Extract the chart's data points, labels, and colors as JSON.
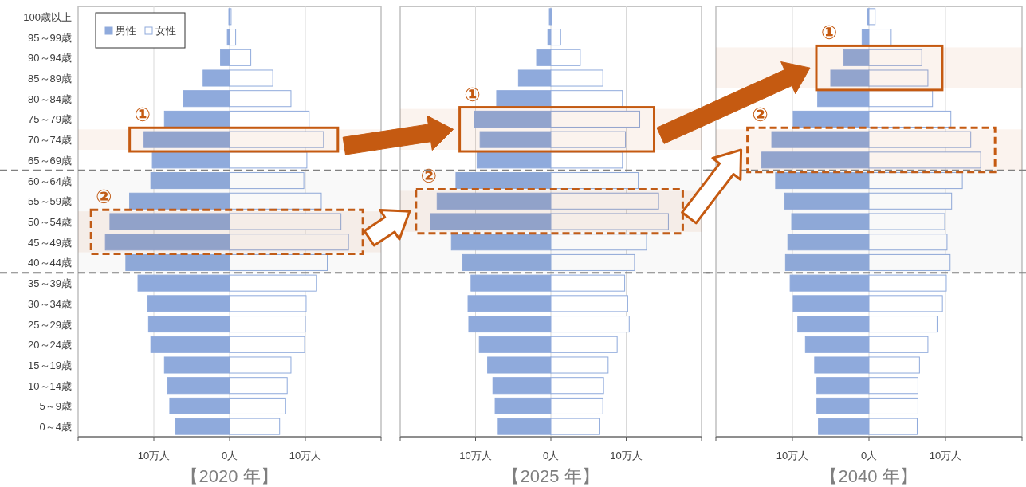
{
  "chart_data": [
    {
      "type": "bar",
      "orientation": "horizontal",
      "stacked": true,
      "title": "【2020 年】",
      "categories": [
        "100歳以上",
        "95～99歳",
        "90～94歳",
        "85～89歳",
        "80～84歳",
        "75～79歳",
        "70～74歳",
        "65～69歳",
        "60～64歳",
        "55～59歳",
        "50～54歳",
        "45～49歳",
        "40～44歳",
        "35～39歳",
        "30～34歳",
        "25～29歳",
        "20～24歳",
        "15～19歳",
        "10～14歳",
        "5～9歳",
        "0～4歳"
      ],
      "series": [
        {
          "name": "男性",
          "color": "#8faadc",
          "values": [
            -0.1,
            -0.3,
            -1.2,
            -3.5,
            -6.1,
            -8.6,
            -11.3,
            -10.2,
            -10.4,
            -13.2,
            -15.8,
            -16.4,
            -13.7,
            -12.1,
            -10.8,
            -10.7,
            -10.4,
            -8.6,
            -8.2,
            -7.9,
            -7.1
          ]
        },
        {
          "name": "女性",
          "color": "#ffffff",
          "values": [
            0.2,
            0.8,
            2.8,
            5.7,
            8.1,
            10.5,
            12.4,
            10.2,
            9.8,
            12.1,
            14.7,
            15.7,
            12.9,
            11.5,
            10.1,
            10.0,
            9.9,
            8.1,
            7.6,
            7.4,
            6.6
          ]
        }
      ],
      "xlim": [
        -20,
        20
      ],
      "xticks": [
        {
          "value": -20,
          "label": null
        },
        {
          "value": -10,
          "label": "10万人"
        },
        {
          "value": 0,
          "label": "0人"
        },
        {
          "value": 10,
          "label": "10万人"
        },
        {
          "value": 20,
          "label": null
        }
      ],
      "grid": "x",
      "legend": "top left",
      "bands": [
        {
          "axis": "y",
          "from": "70～74歳",
          "to": "70～74歳",
          "label": "①",
          "color": "#c55a11"
        },
        {
          "axis": "y",
          "from": "50～54歳",
          "to": "45～49歳",
          "label": "②",
          "color": "#c55a11"
        },
        {
          "axis": "y",
          "from": "60～64歳",
          "to": "40～44歳",
          "color": "#808080"
        }
      ]
    },
    {
      "type": "bar",
      "orientation": "horizontal",
      "stacked": true,
      "title": "【2025 年】",
      "tick_labels": "x",
      "categories": [
        "100歳以上",
        "95～99歳",
        "90～94歳",
        "85～89歳",
        "80～84歳",
        "75～79歳",
        "70～74歳",
        "65～69歳",
        "60～64歳",
        "55～59歳",
        "50～54歳",
        "45～49歳",
        "40～44歳",
        "35～39歳",
        "30～34歳",
        "25～29歳",
        "20～24歳",
        "15～19歳",
        "10～14歳",
        "5～9歳",
        "0～4歳"
      ],
      "series": [
        {
          "color": "#8faadc",
          "values": [
            -0.2,
            -0.4,
            -1.9,
            -4.3,
            -7.2,
            -10.2,
            -9.4,
            -9.8,
            -12.6,
            -15.1,
            -16.0,
            -13.2,
            -11.7,
            -10.6,
            -11.0,
            -10.9,
            -9.5,
            -8.4,
            -7.7,
            -7.4,
            -7.0
          ]
        },
        {
          "color": "#ffffff",
          "values": [
            0.1,
            1.3,
            3.9,
            6.9,
            9.5,
            11.8,
            9.9,
            9.5,
            11.6,
            14.3,
            15.6,
            12.7,
            11.1,
            9.8,
            10.2,
            10.4,
            8.8,
            7.6,
            7.0,
            6.9,
            6.5
          ]
        }
      ],
      "xlim": [
        -20,
        20
      ],
      "xticks": [
        {
          "value": -20,
          "label": null
        },
        {
          "value": -10,
          "label": "10万人"
        },
        {
          "value": 0,
          "label": "0人"
        },
        {
          "value": 10,
          "label": "10万人"
        },
        {
          "value": 20,
          "label": null
        }
      ],
      "grid": "x",
      "bands": [
        {
          "axis": "y",
          "from": "75～79歳",
          "to": "70～74歳",
          "label": "①",
          "color": "#c55a11"
        },
        {
          "axis": "y",
          "from": "55～59歳",
          "to": "50～54歳",
          "label": "②",
          "color": "#c55a11"
        },
        {
          "axis": "y",
          "from": "60～64歳",
          "to": "40～44歳",
          "color": "#808080"
        }
      ]
    },
    {
      "type": "bar",
      "orientation": "horizontal",
      "stacked": true,
      "title": "【2040 年】",
      "tick_labels": "x",
      "categories": [
        "100歳以上",
        "95～99歳",
        "90～94歳",
        "85～89歳",
        "80～84歳",
        "75～79歳",
        "70～74歳",
        "65～69歳",
        "60～64歳",
        "55～59歳",
        "50～54歳",
        "45～49歳",
        "40～44歳",
        "35～39歳",
        "30～34歳",
        "25～29歳",
        "20～24歳",
        "15～19歳",
        "10～14歳",
        "5～9歳",
        "0～4歳"
      ],
      "series": [
        {
          "color": "#8faadc",
          "values": [
            -0.2,
            -0.9,
            -3.3,
            -5.0,
            -6.7,
            -9.9,
            -12.7,
            -14.0,
            -12.2,
            -11.0,
            -10.1,
            -10.6,
            -10.9,
            -10.3,
            -9.9,
            -9.3,
            -8.3,
            -7.1,
            -6.8,
            -6.8,
            -6.6
          ]
        },
        {
          "color": "#ffffff",
          "values": [
            0.8,
            2.9,
            6.9,
            7.7,
            8.3,
            10.7,
            13.3,
            14.6,
            12.2,
            10.8,
            9.9,
            10.2,
            10.6,
            10.1,
            9.6,
            8.9,
            7.7,
            6.6,
            6.4,
            6.4,
            6.3
          ]
        }
      ],
      "xlim": [
        -20,
        20
      ],
      "xticks": [
        {
          "value": -20,
          "label": null
        },
        {
          "value": -10,
          "label": "10万人"
        },
        {
          "value": 0,
          "label": "0人"
        },
        {
          "value": 10,
          "label": "10万人"
        },
        {
          "value": 20,
          "label": null
        }
      ],
      "grid": "x",
      "bands": [
        {
          "axis": "y",
          "from": "90～94歳",
          "to": "85～89歳",
          "label": "①",
          "color": "#c55a11"
        },
        {
          "axis": "y",
          "from": "70～74歳",
          "to": "65～69歳",
          "label": "②",
          "color": "#c55a11"
        },
        {
          "axis": "y",
          "from": "60～64歳",
          "to": "40～44歳",
          "color": "#808080"
        }
      ]
    }
  ]
}
